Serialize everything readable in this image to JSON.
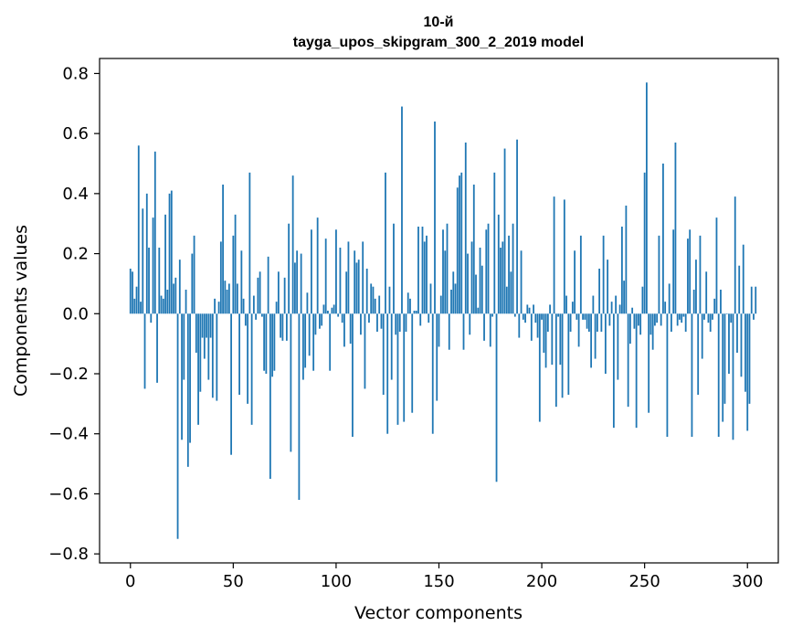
{
  "chart_data": {
    "type": "bar",
    "title_line1": "10-й",
    "title_line2": "tayga_upos_skipgram_300_2_2019 model",
    "xlabel": "Vector components",
    "ylabel": "Components values",
    "xlim": [
      -15,
      315
    ],
    "ylim": [
      -0.83,
      0.85
    ],
    "xticks": [
      0,
      50,
      100,
      150,
      200,
      250,
      300
    ],
    "xtick_labels": [
      "0",
      "50",
      "100",
      "150",
      "200",
      "250",
      "300"
    ],
    "yticks": [
      -0.8,
      -0.6,
      -0.4,
      -0.2,
      0.0,
      0.2,
      0.4,
      0.6,
      0.8
    ],
    "ytick_labels": [
      "−0.8",
      "−0.6",
      "−0.4",
      "−0.2",
      "0.0",
      "0.2",
      "0.4",
      "0.6",
      "0.8"
    ],
    "bar_color": "#1f77b4",
    "grid": false,
    "values": [
      0.15,
      0.14,
      0.05,
      0.09,
      0.56,
      0.04,
      0.35,
      -0.25,
      0.4,
      0.22,
      -0.03,
      0.32,
      0.54,
      -0.23,
      0.22,
      0.06,
      0.05,
      0.33,
      0.08,
      0.4,
      0.41,
      0.1,
      0.12,
      -0.75,
      0.18,
      -0.42,
      -0.22,
      0.08,
      -0.51,
      -0.43,
      0.2,
      0.26,
      -0.13,
      -0.37,
      -0.26,
      -0.08,
      -0.15,
      -0.08,
      -0.22,
      -0.08,
      -0.28,
      0.05,
      -0.29,
      0.04,
      0.24,
      0.43,
      0.11,
      0.08,
      0.1,
      -0.47,
      0.26,
      0.33,
      0.1,
      -0.27,
      0.21,
      0.05,
      -0.04,
      -0.3,
      0.47,
      -0.37,
      0.06,
      -0.02,
      0.12,
      0.14,
      -0.01,
      -0.19,
      -0.2,
      0.19,
      -0.55,
      -0.21,
      -0.19,
      0.04,
      0.14,
      -0.08,
      -0.09,
      0.12,
      -0.09,
      0.3,
      -0.46,
      0.46,
      0.17,
      0.21,
      -0.62,
      0.2,
      -0.22,
      -0.18,
      0.07,
      -0.14,
      0.28,
      -0.19,
      -0.07,
      0.32,
      -0.05,
      -0.04,
      0.03,
      0.25,
      0.01,
      -0.19,
      0.02,
      0.03,
      0.28,
      -0.01,
      0.22,
      -0.03,
      -0.11,
      0.14,
      0.24,
      -0.1,
      -0.41,
      0.21,
      0.17,
      0.18,
      -0.07,
      0.24,
      -0.25,
      0.15,
      -0.03,
      0.1,
      0.09,
      0.05,
      -0.06,
      0.06,
      -0.05,
      -0.27,
      0.47,
      -0.4,
      0.09,
      -0.22,
      0.3,
      -0.07,
      -0.37,
      -0.06,
      0.69,
      -0.36,
      -0.06,
      0.07,
      0.05,
      -0.33,
      0.01,
      0.01,
      0.29,
      -0.04,
      0.29,
      0.24,
      0.26,
      -0.03,
      0.1,
      -0.4,
      0.64,
      -0.29,
      -0.11,
      0.06,
      0.28,
      0.21,
      0.3,
      -0.12,
      0.08,
      0.14,
      0.1,
      0.42,
      0.46,
      0.47,
      -0.12,
      0.57,
      0.2,
      -0.07,
      0.24,
      0.43,
      0.13,
      0.02,
      0.22,
      0.16,
      -0.09,
      0.28,
      0.3,
      -0.11,
      -0.01,
      0.47,
      -0.56,
      0.33,
      0.22,
      0.24,
      0.55,
      0.09,
      0.26,
      0.14,
      0.3,
      -0.01,
      0.58,
      -0.08,
      0.21,
      -0.02,
      -0.03,
      0.03,
      0.02,
      -0.09,
      0.03,
      -0.03,
      -0.08,
      -0.36,
      -0.02,
      -0.13,
      -0.18,
      -0.06,
      0.03,
      -0.17,
      0.39,
      -0.31,
      -0.01,
      -0.17,
      -0.28,
      0.38,
      0.06,
      -0.27,
      -0.06,
      0.04,
      0.21,
      -0.02,
      -0.11,
      0.26,
      -0.02,
      -0.02,
      -0.05,
      -0.06,
      -0.18,
      0.06,
      -0.15,
      -0.06,
      0.15,
      -0.06,
      0.26,
      -0.2,
      0.18,
      -0.04,
      0.04,
      -0.38,
      0.06,
      -0.22,
      0.03,
      0.29,
      0.11,
      0.36,
      -0.31,
      -0.1,
      0.02,
      -0.05,
      -0.38,
      -0.04,
      -0.07,
      0.09,
      0.47,
      0.77,
      -0.33,
      -0.07,
      -0.12,
      -0.04,
      -0.03,
      0.26,
      -0.04,
      0.5,
      0.04,
      -0.41,
      0.1,
      -0.06,
      0.28,
      0.57,
      -0.04,
      -0.02,
      -0.03,
      -0.01,
      -0.06,
      0.25,
      0.28,
      -0.41,
      0.08,
      0.18,
      -0.27,
      0.26,
      -0.15,
      -0.02,
      0.14,
      -0.03,
      -0.06,
      -0.02,
      0.05,
      0.32,
      -0.41,
      0.08,
      -0.36,
      -0.3,
      0.0,
      -0.2,
      -0.03,
      -0.42,
      0.39,
      -0.13,
      0.16,
      -0.21,
      0.23,
      -0.26,
      -0.39,
      -0.3,
      0.09,
      -0.02,
      0.09
    ]
  }
}
